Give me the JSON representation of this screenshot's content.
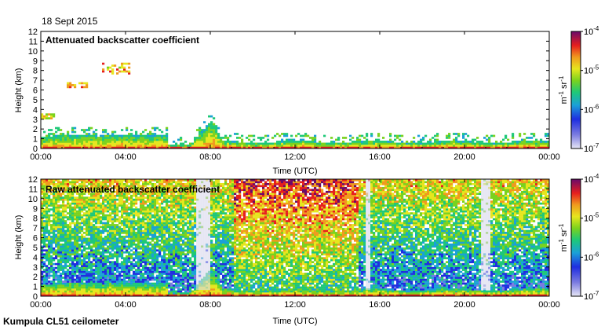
{
  "date": "18 Sept 2015",
  "footer": "Kumpula CL51 ceilometer",
  "colorbar": {
    "ticks": [
      "10",
      "10",
      "10",
      "10"
    ],
    "exponents": [
      "-4",
      "-5",
      "-6",
      "-7"
    ],
    "unit_base": [
      "m",
      "sr"
    ],
    "unit_exp": [
      "-1",
      "-1"
    ]
  },
  "chart_data": [
    {
      "type": "heatmap",
      "title": "Attenuated backscatter coefficient",
      "xlabel": "Time (UTC)",
      "ylabel": "Height (km)",
      "xticks": [
        "00:00",
        "04:00",
        "08:00",
        "12:00",
        "16:00",
        "20:00",
        "00:00"
      ],
      "yticks": [
        "0",
        "1",
        "2",
        "3",
        "4",
        "5",
        "6",
        "7",
        "8",
        "9",
        "10",
        "11",
        "12"
      ],
      "xlim_hours": [
        0,
        24
      ],
      "ylim_km": [
        0,
        12
      ],
      "color_scale": "log",
      "clim": [
        1e-07,
        0.0001
      ]
    },
    {
      "type": "heatmap",
      "title": "Raw attenuated backscatter coefficient",
      "xlabel": "Time (UTC)",
      "ylabel": "Height (km)",
      "xticks": [
        "00:00",
        "04:00",
        "08:00",
        "12:00",
        "16:00",
        "20:00",
        "00:00"
      ],
      "yticks": [
        "0",
        "1",
        "2",
        "3",
        "4",
        "5",
        "6",
        "7",
        "8",
        "9",
        "10",
        "11",
        "12"
      ],
      "xlim_hours": [
        0,
        24
      ],
      "ylim_km": [
        0,
        12
      ],
      "color_scale": "log",
      "clim": [
        1e-07,
        0.0001
      ]
    }
  ]
}
